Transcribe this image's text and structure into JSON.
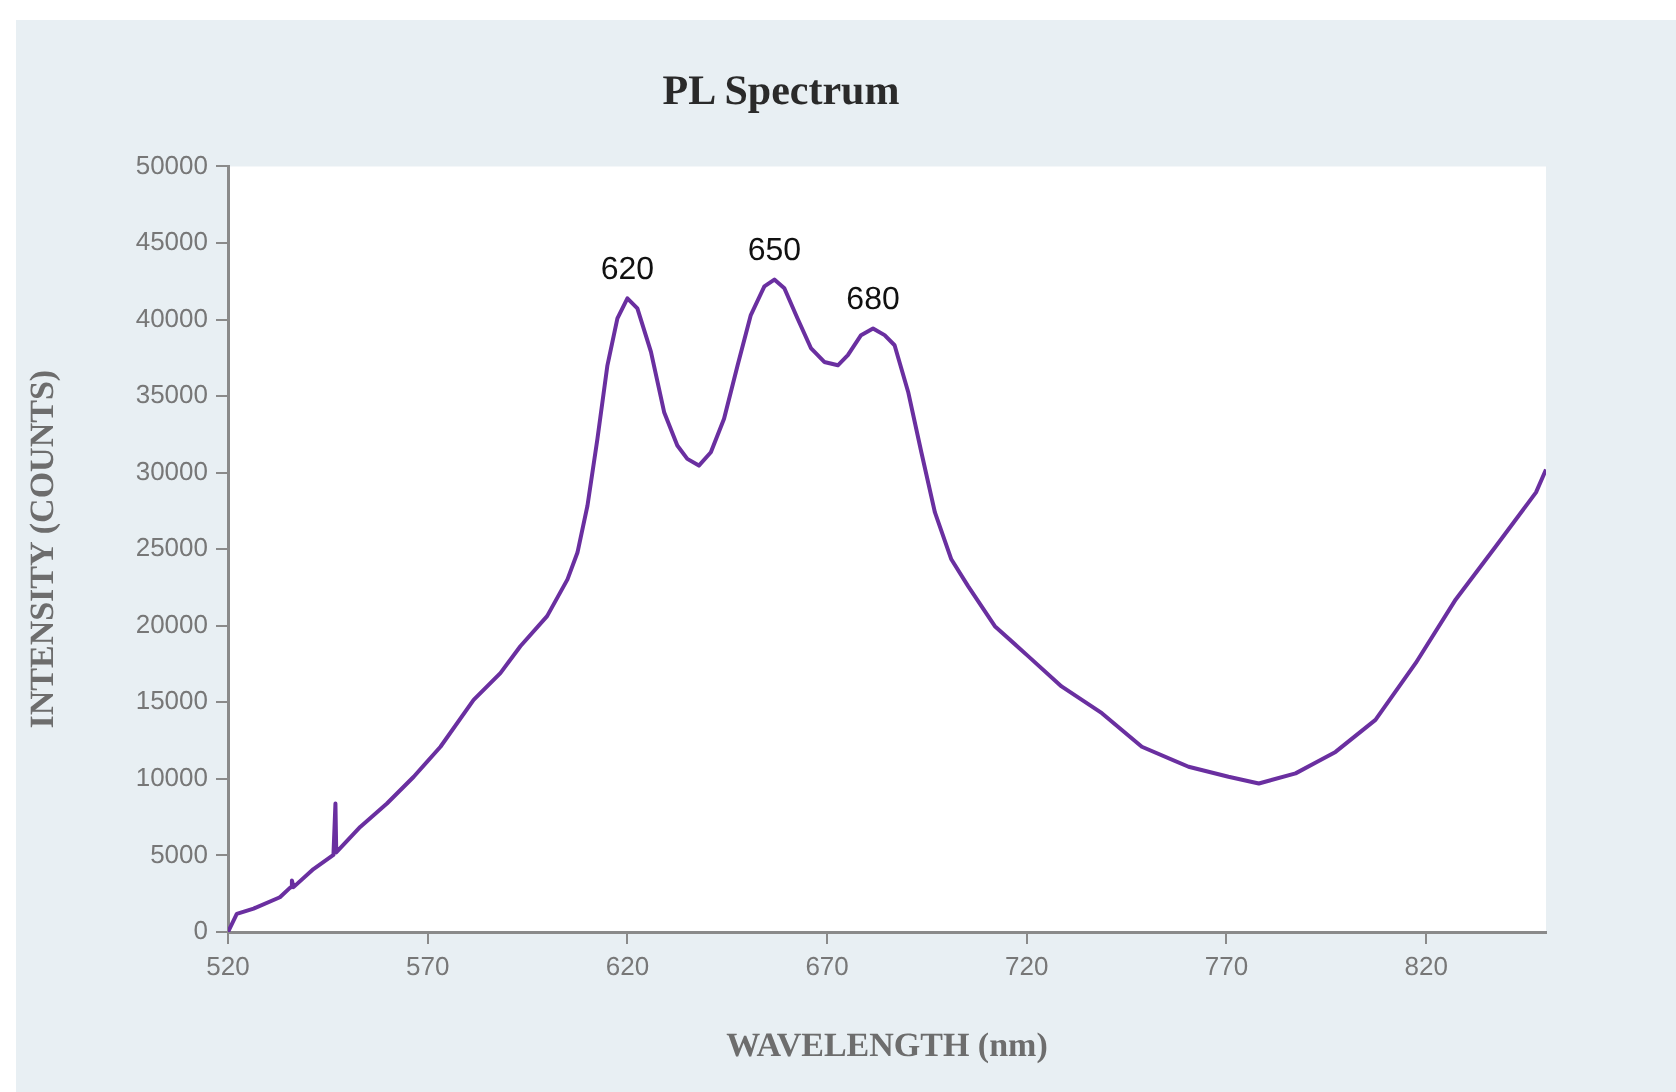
{
  "chart_data": {
    "type": "line",
    "title": "PL Spectrum",
    "xlabel": "WAVELENGTH (nm)",
    "ylabel": "INTENSITY (COUNTS)",
    "x": [
      520,
      522.2,
      526.4,
      533,
      535.7,
      536,
      536.4,
      541.4,
      546.4,
      546.9,
      547.1,
      553.1,
      559.8,
      566.5,
      573.2,
      581.5,
      588.2,
      593.2,
      599.9,
      605,
      607.5,
      610,
      612.5,
      615,
      617.5,
      620,
      622.5,
      625.9,
      629.2,
      632.5,
      635,
      637.9,
      640.9,
      644.2,
      647.6,
      650.9,
      654.3,
      656.8,
      659.3,
      662.6,
      666,
      669.3,
      672.7,
      675.2,
      678.5,
      681.5,
      684.4,
      686.9,
      690.3,
      693.6,
      697,
      701.1,
      705.3,
      712,
      720.4,
      728.7,
      738.8,
      748.8,
      760.5,
      770.5,
      778.1,
      787.3,
      797.3,
      807.3,
      817.4,
      827.4,
      837.5,
      847.5,
      850
    ],
    "values": [
      0,
      1180,
      1530,
      2270,
      2930,
      3360,
      2930,
      4110,
      5030,
      8390,
      5200,
      6860,
      8390,
      10140,
      12100,
      15160,
      16910,
      18660,
      20630,
      23030,
      24780,
      27840,
      32210,
      37010,
      40070,
      41380,
      40730,
      37890,
      33950,
      31770,
      30900,
      30460,
      31330,
      33520,
      37010,
      40290,
      42170,
      42610,
      42040,
      40070,
      38110,
      37230,
      37010,
      37670,
      38980,
      39420,
      38980,
      38320,
      35270,
      31330,
      27400,
      24340,
      22590,
      19970,
      18000,
      16040,
      14290,
      12100,
      10790,
      10140,
      9700,
      10360,
      11760,
      13850,
      17570,
      21720,
      25210,
      28710,
      30200
    ],
    "color": "#6a2fa0",
    "line_style": "solid",
    "xlim": [
      520,
      850
    ],
    "xticks": [
      520,
      570,
      620,
      670,
      720,
      770,
      820
    ],
    "ylim": [
      0,
      50000
    ],
    "yticks": [
      0,
      5000,
      10000,
      15000,
      20000,
      25000,
      30000,
      35000,
      40000,
      45000,
      50000
    ],
    "grid": false,
    "legend": false,
    "annotations": [
      {
        "text": "620",
        "x": 620,
        "y": 41380
      },
      {
        "text": "650",
        "x": 656.8,
        "y": 42610
      },
      {
        "text": "680",
        "x": 681.5,
        "y": 39420
      }
    ]
  }
}
